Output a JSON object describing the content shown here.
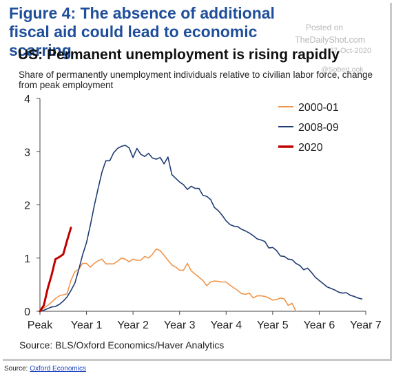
{
  "header": {
    "figure_title": "Figure 4: The absence of additional fiscal aid could lead to economic scarring",
    "watermark": [
      "Posted on",
      "TheDailyShot.com",
      "07-Oct-2020",
      "@SoberLook"
    ]
  },
  "chart_data": {
    "type": "line",
    "title": "US: Permanent unemployment is rising rapidly",
    "subtitle": "Share of permanently unemployment individuals relative to civilian labor force, change from peak employment",
    "xlabel": "",
    "ylabel": "",
    "x_tick_labels": [
      "Peak",
      "Year 1",
      "Year 2",
      "Year 3",
      "Year 4",
      "Year 5",
      "Year 6",
      "Year 7"
    ],
    "y_ticks": [
      0,
      1,
      2,
      3,
      4
    ],
    "ylim": [
      0,
      4
    ],
    "xlim": [
      0,
      84
    ],
    "legend_position": "top-right",
    "grid": false,
    "series": [
      {
        "name": "2000-01",
        "color": "#f0954b",
        "x": [
          0,
          1,
          2,
          3,
          4,
          5,
          6,
          7,
          8,
          9,
          10,
          11,
          12,
          13,
          14,
          15,
          16,
          17,
          18,
          19,
          20,
          21,
          22,
          23,
          24,
          25,
          26,
          27,
          28,
          29,
          30,
          31,
          32,
          33,
          34,
          35,
          36,
          37,
          38,
          39,
          40,
          41,
          42,
          43,
          44,
          45,
          46,
          47,
          48,
          49,
          50,
          51,
          52,
          53,
          54,
          55,
          56,
          57,
          58,
          59,
          60,
          61,
          62,
          63,
          64,
          65,
          66
        ],
        "values": [
          0,
          0.06,
          0.11,
          0.17,
          0.24,
          0.29,
          0.31,
          0.33,
          0.58,
          0.74,
          0.79,
          0.9,
          0.9,
          0.83,
          0.9,
          0.95,
          0.98,
          0.89,
          0.89,
          0.89,
          0.94,
          1.0,
          0.98,
          0.93,
          0.98,
          0.96,
          0.96,
          1.03,
          1.0,
          1.07,
          1.17,
          1.14,
          1.05,
          0.96,
          0.87,
          0.83,
          0.77,
          0.77,
          0.9,
          0.76,
          0.7,
          0.64,
          0.58,
          0.48,
          0.55,
          0.57,
          0.56,
          0.55,
          0.55,
          0.49,
          0.44,
          0.39,
          0.33,
          0.32,
          0.34,
          0.25,
          0.29,
          0.29,
          0.28,
          0.25,
          0.21,
          0.22,
          0.25,
          0.23,
          0.11,
          0.15,
          0.0
        ]
      },
      {
        "name": "2008-09",
        "color": "#1f3c73",
        "x": [
          0,
          1,
          2,
          3,
          4,
          5,
          6,
          7,
          8,
          9,
          10,
          11,
          12,
          13,
          14,
          15,
          16,
          17,
          18,
          19,
          20,
          21,
          22,
          23,
          24,
          25,
          26,
          27,
          28,
          29,
          30,
          31,
          32,
          33,
          34,
          35,
          36,
          37,
          38,
          39,
          40,
          41,
          42,
          43,
          44,
          45,
          46,
          47,
          48,
          49,
          50,
          51,
          52,
          53,
          54,
          55,
          56,
          57,
          58,
          59,
          60,
          61,
          62,
          63,
          64,
          65,
          66,
          67,
          68,
          69,
          70,
          71,
          72,
          73,
          74,
          75,
          76,
          77,
          78,
          79,
          80,
          81,
          82,
          83
        ],
        "values": [
          0,
          0.02,
          0.05,
          0.08,
          0.09,
          0.13,
          0.19,
          0.27,
          0.39,
          0.53,
          0.78,
          1.06,
          1.29,
          1.62,
          1.98,
          2.31,
          2.62,
          2.83,
          2.83,
          2.98,
          3.06,
          3.1,
          3.12,
          3.07,
          2.89,
          3.06,
          2.95,
          2.91,
          2.97,
          2.88,
          2.86,
          2.89,
          2.77,
          2.9,
          2.57,
          2.5,
          2.43,
          2.38,
          2.29,
          2.35,
          2.31,
          2.31,
          2.18,
          2.16,
          2.1,
          1.95,
          1.89,
          1.8,
          1.7,
          1.63,
          1.6,
          1.59,
          1.54,
          1.51,
          1.47,
          1.42,
          1.36,
          1.34,
          1.31,
          1.19,
          1.2,
          1.14,
          1.04,
          1.03,
          0.98,
          0.97,
          0.9,
          0.86,
          0.78,
          0.81,
          0.73,
          0.64,
          0.58,
          0.52,
          0.46,
          0.43,
          0.4,
          0.36,
          0.34,
          0.35,
          0.3,
          0.28,
          0.25,
          0.23
        ]
      },
      {
        "name": "2020",
        "color": "#c00000",
        "x": [
          0,
          1,
          2,
          3,
          4,
          5,
          6,
          7,
          8
        ],
        "values": [
          0,
          0.11,
          0.43,
          0.68,
          0.98,
          1.02,
          1.07,
          1.33,
          1.57
        ]
      }
    ]
  },
  "source_line": "Source: BLS/Oxford Economics/Haver Analytics",
  "footer": {
    "prefix": "Source:",
    "link_text": "Oxford Economics"
  }
}
